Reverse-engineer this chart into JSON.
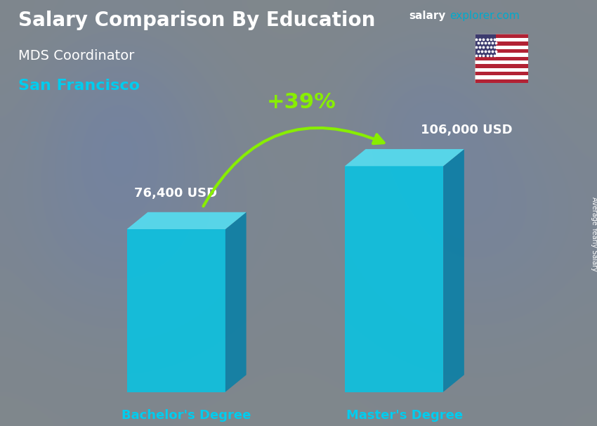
{
  "title_main": "Salary Comparison By Education",
  "title_job": "MDS Coordinator",
  "title_city": "San Francisco",
  "watermark_salary": "salary",
  "watermark_rest": "explorer.com",
  "categories": [
    "Bachelor's Degree",
    "Master's Degree"
  ],
  "values": [
    76400,
    106000
  ],
  "value_labels": [
    "76,400 USD",
    "106,000 USD"
  ],
  "bar_face_color": "#00c8e8",
  "bar_top_color": "#55ddf0",
  "bar_side_color": "#007fa8",
  "bar_alpha": 0.82,
  "pct_label": "+39%",
  "pct_color": "#88ee00",
  "arrow_color": "#88ee00",
  "ylabel_text": "Average Yearly Salary",
  "bg_color": "#7a8a90",
  "text_color_white": "#ffffff",
  "text_color_cyan": "#00ccee",
  "watermark_color_white": "#ffffff",
  "watermark_color_cyan": "#00aacc",
  "figsize": [
    8.5,
    6.06
  ],
  "dpi": 100,
  "flag_stripes": [
    "#B22234",
    "#FFFFFF",
    "#B22234",
    "#FFFFFF",
    "#B22234",
    "#FFFFFF",
    "#B22234",
    "#FFFFFF",
    "#B22234",
    "#FFFFFF",
    "#B22234",
    "#FFFFFF",
    "#B22234"
  ],
  "flag_canton_color": "#3C3B6E"
}
